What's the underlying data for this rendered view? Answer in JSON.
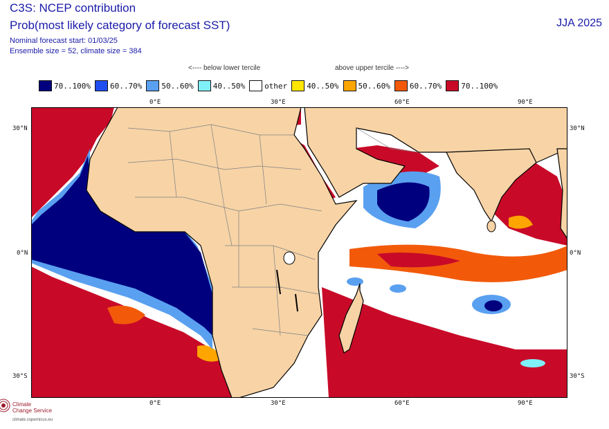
{
  "header": {
    "title": "C3S: NCEP contribution",
    "subtitle": "Prob(most likely category of forecast SST)",
    "forecast_start": "Nominal forecast start: 01/03/25",
    "ensemble_info": "Ensemble size = 52, climate size = 384",
    "season": "JJA 2025"
  },
  "legend": {
    "below_label": "<---- below lower tercile",
    "above_label": "above upper tercile ---->",
    "items": [
      {
        "label": "70..100%",
        "color": "#00007f"
      },
      {
        "label": "60..70%",
        "color": "#1f4ef0"
      },
      {
        "label": "50..60%",
        "color": "#5aa0f0"
      },
      {
        "label": "40..50%",
        "color": "#7ff0f8"
      },
      {
        "label": "other",
        "color": "#ffffff"
      },
      {
        "label": "40..50%",
        "color": "#ffe600"
      },
      {
        "label": "50..60%",
        "color": "#ffa500"
      },
      {
        "label": "60..70%",
        "color": "#f25a0a"
      },
      {
        "label": "70..100%",
        "color": "#c80a28"
      }
    ]
  },
  "axes": {
    "lon_labels": [
      "0°E",
      "30°E",
      "60°E",
      "90°E"
    ],
    "lat_labels": [
      "30°N",
      "0°N",
      "30°S"
    ]
  },
  "colors": {
    "land": "#f7d3a6",
    "border": "#808080",
    "coast": "#000000"
  },
  "logo": {
    "name_line1": "Climate",
    "name_line2": "Change Service",
    "url": "climate.copernicus.eu"
  }
}
